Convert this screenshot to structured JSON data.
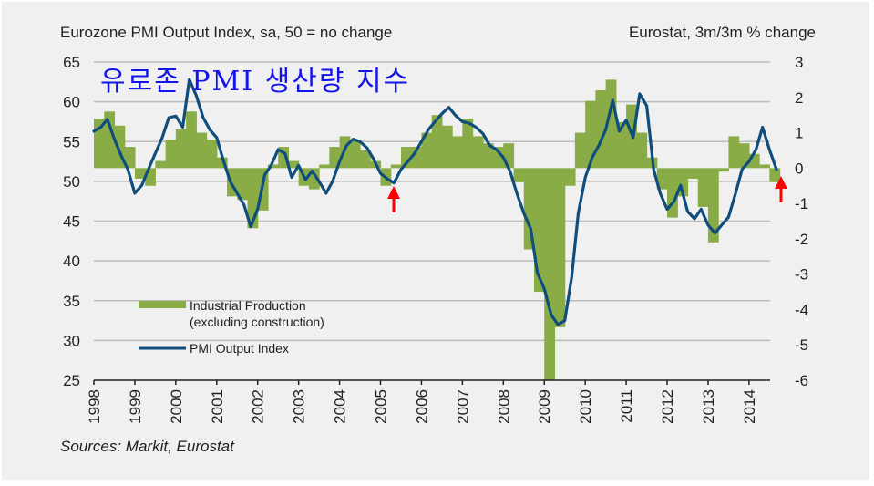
{
  "chart_data": {
    "type": "bar+line",
    "title_left": "Eurozone PMI Output Index, sa, 50 = no change",
    "title_right": "Eurostat, 3m/3m % change",
    "overlay_title": "유로존 PMI 생산량 지수",
    "source": "Sources: Markit, Eurostat",
    "left_axis": {
      "label": "PMI Output Index",
      "ylim": [
        25,
        65
      ],
      "ticks": [
        "65",
        "60",
        "55",
        "50",
        "45",
        "40",
        "35",
        "30",
        "25"
      ]
    },
    "right_axis": {
      "label": "3m/3m % change",
      "ylim": [
        -6,
        3
      ],
      "ticks": [
        "3",
        "2",
        "1",
        "0",
        "-1",
        "-2",
        "-3",
        "-4",
        "-5",
        "-6"
      ]
    },
    "x_axis": {
      "start_year": 1998,
      "end_year": 2014.75,
      "ticks": [
        "1998",
        "1999",
        "2000",
        "2001",
        "2002",
        "2003",
        "2004",
        "2005",
        "2006",
        "2007",
        "2008",
        "2009",
        "2010",
        "2011",
        "2012",
        "2013",
        "2014"
      ]
    },
    "grid": true,
    "legend": {
      "placement": "lower-left",
      "entries": [
        {
          "label_line1": "Industrial Production",
          "label_line2": "(excluding construction)",
          "type": "bar",
          "color": "#8aac46"
        },
        {
          "label_line1": "PMI Output Index",
          "label_line2": "",
          "type": "line",
          "color": "#0e4d7c"
        }
      ]
    },
    "series": [
      {
        "name": "Industrial Production (excluding construction)",
        "axis": "right",
        "type": "bar",
        "color": "#8aac46",
        "x": [
          1998.0,
          1998.25,
          1998.5,
          1998.75,
          1999.0,
          1999.25,
          1999.5,
          1999.75,
          2000.0,
          2000.25,
          2000.5,
          2000.75,
          2001.0,
          2001.25,
          2001.5,
          2001.75,
          2002.0,
          2002.25,
          2002.5,
          2002.75,
          2003.0,
          2003.25,
          2003.5,
          2003.75,
          2004.0,
          2004.25,
          2004.5,
          2004.75,
          2005.0,
          2005.25,
          2005.5,
          2005.75,
          2006.0,
          2006.25,
          2006.5,
          2006.75,
          2007.0,
          2007.25,
          2007.5,
          2007.75,
          2008.0,
          2008.25,
          2008.5,
          2008.75,
          2009.0,
          2009.25,
          2009.5,
          2009.75,
          2010.0,
          2010.25,
          2010.5,
          2010.75,
          2011.0,
          2011.25,
          2011.5,
          2011.75,
          2012.0,
          2012.25,
          2012.5,
          2012.75,
          2013.0,
          2013.25,
          2013.5,
          2013.75,
          2014.0,
          2014.25,
          2014.5
        ],
        "values": [
          1.4,
          1.6,
          1.2,
          0.6,
          -0.3,
          -0.5,
          0.2,
          0.8,
          1.1,
          1.6,
          1.0,
          0.8,
          0.3,
          -0.8,
          -0.9,
          -1.7,
          -1.2,
          0.1,
          0.6,
          0.2,
          -0.5,
          -0.6,
          0.1,
          0.6,
          0.9,
          0.8,
          0.5,
          0.2,
          -0.5,
          0.1,
          0.6,
          0.6,
          1.0,
          1.5,
          1.2,
          0.9,
          1.4,
          0.9,
          0.7,
          0.6,
          0.7,
          -0.4,
          -2.3,
          -3.5,
          -6.0,
          -4.5,
          -0.5,
          1.0,
          1.9,
          2.2,
          2.5,
          1.3,
          1.8,
          1.0,
          0.3,
          -0.6,
          -1.4,
          -0.8,
          -0.3,
          -1.1,
          -2.1,
          -0.1,
          0.9,
          0.7,
          0.4,
          0.1,
          -0.4
        ]
      },
      {
        "name": "PMI Output Index",
        "axis": "left",
        "type": "line",
        "color": "#0e4d7c",
        "x": [
          1998.0,
          1998.17,
          1998.33,
          1998.5,
          1998.67,
          1998.83,
          1999.0,
          1999.17,
          1999.33,
          1999.5,
          1999.67,
          1999.83,
          2000.0,
          2000.17,
          2000.33,
          2000.5,
          2000.67,
          2000.83,
          2001.0,
          2001.17,
          2001.33,
          2001.5,
          2001.67,
          2001.83,
          2002.0,
          2002.17,
          2002.33,
          2002.5,
          2002.67,
          2002.83,
          2003.0,
          2003.17,
          2003.33,
          2003.5,
          2003.67,
          2003.83,
          2004.0,
          2004.17,
          2004.33,
          2004.5,
          2004.67,
          2004.83,
          2005.0,
          2005.17,
          2005.33,
          2005.5,
          2005.67,
          2005.83,
          2006.0,
          2006.17,
          2006.33,
          2006.5,
          2006.67,
          2006.83,
          2007.0,
          2007.17,
          2007.33,
          2007.5,
          2007.67,
          2007.83,
          2008.0,
          2008.17,
          2008.33,
          2008.5,
          2008.67,
          2008.83,
          2009.0,
          2009.17,
          2009.33,
          2009.5,
          2009.67,
          2009.83,
          2010.0,
          2010.17,
          2010.33,
          2010.5,
          2010.67,
          2010.83,
          2011.0,
          2011.17,
          2011.33,
          2011.5,
          2011.67,
          2011.83,
          2012.0,
          2012.17,
          2012.33,
          2012.5,
          2012.67,
          2012.83,
          2013.0,
          2013.17,
          2013.33,
          2013.5,
          2013.67,
          2013.83,
          2014.0,
          2014.17,
          2014.33,
          2014.5,
          2014.67
        ],
        "values": [
          56.3,
          56.8,
          57.8,
          55.3,
          53.2,
          51.5,
          48.5,
          49.5,
          51.5,
          53.5,
          55.5,
          58.0,
          58.2,
          56.8,
          62.8,
          60.8,
          58.0,
          56.5,
          55.5,
          52.5,
          50.0,
          48.5,
          47.0,
          44.3,
          46.5,
          50.8,
          52.0,
          54.0,
          53.5,
          50.5,
          52.0,
          50.2,
          51.3,
          50.0,
          48.5,
          50.0,
          52.5,
          54.5,
          55.3,
          55.0,
          54.2,
          52.8,
          51.0,
          50.3,
          49.8,
          51.5,
          52.5,
          53.5,
          55.0,
          56.5,
          57.5,
          58.5,
          59.3,
          58.3,
          57.5,
          57.3,
          56.8,
          56.0,
          54.5,
          54.0,
          53.0,
          51.2,
          48.5,
          46.0,
          44.0,
          38.5,
          36.5,
          33.2,
          32.0,
          32.5,
          38.0,
          46.0,
          50.5,
          53.0,
          54.5,
          56.5,
          60.2,
          56.3,
          57.7,
          55.5,
          61.0,
          59.5,
          51.5,
          48.5,
          46.5,
          47.5,
          49.5,
          46.2,
          45.3,
          46.5,
          44.5,
          43.5,
          44.5,
          45.5,
          48.5,
          51.5,
          52.5,
          54.0,
          56.8,
          54.0,
          51.5
        ]
      }
    ],
    "annotations": [
      {
        "type": "arrow",
        "color": "#ff0000",
        "x": 2005.25,
        "note": "PMI trough marker"
      },
      {
        "type": "arrow",
        "color": "#ff0000",
        "x": 2014.75,
        "note": "latest PMI marker"
      }
    ]
  }
}
